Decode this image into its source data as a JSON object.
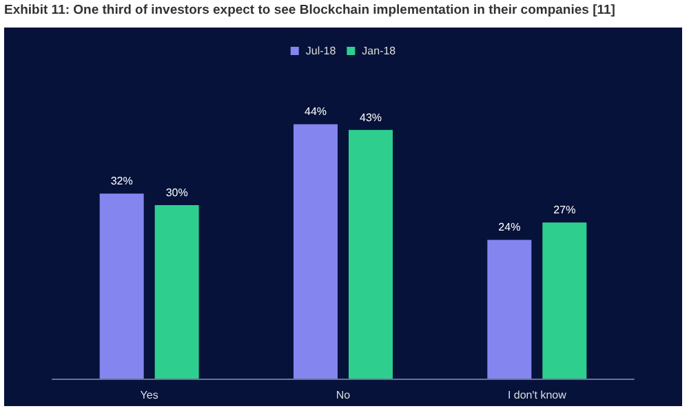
{
  "chart_data": {
    "type": "bar",
    "title": "Exhibit 11: One third of investors expect to see Blockchain implementation in their companies [11]",
    "categories": [
      "Yes",
      "No",
      "I don't know"
    ],
    "series": [
      {
        "name": "Jul-18",
        "color": "#8585f0",
        "values": [
          32,
          44,
          24
        ],
        "value_labels": [
          "32%",
          "44%",
          "24%"
        ]
      },
      {
        "name": "Jan-18",
        "color": "#2ecf8e",
        "values": [
          30,
          43,
          27
        ],
        "value_labels": [
          "30%",
          "43%",
          "27%"
        ]
      }
    ],
    "legend": "top"
  }
}
